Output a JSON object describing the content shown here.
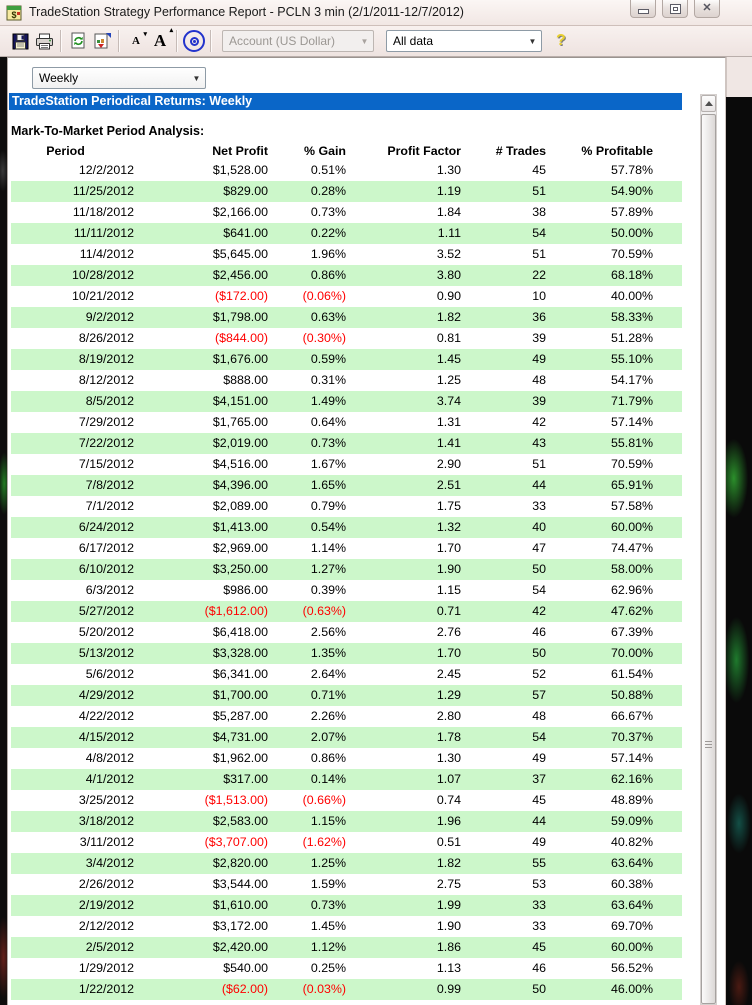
{
  "window": {
    "title": "TradeStation Strategy Performance Report - PCLN 3 min (2/1/2011-12/7/2012)",
    "controls": [
      "minimize",
      "maximize",
      "close"
    ]
  },
  "toolbar": {
    "icons": [
      "save-icon",
      "print-icon",
      "refresh-icon",
      "export-report-icon",
      "decrease-font-icon",
      "increase-font-icon",
      "target-icon",
      "help-icon"
    ],
    "font_small_label": "A",
    "font_large_label": "A",
    "account_dropdown": {
      "value": "Account (US Dollar)",
      "disabled": true
    },
    "data_dropdown": {
      "value": "All data",
      "disabled": false
    },
    "help_label": "?"
  },
  "period_selector": {
    "value": "Weekly"
  },
  "report": {
    "banner": "TradeStation Periodical Returns: Weekly",
    "section_title": "Mark-To-Market Period Analysis:",
    "columns": [
      "Period",
      "Net Profit",
      "% Gain",
      "Profit Factor",
      "# Trades",
      "% Profitable"
    ],
    "rows": [
      {
        "period": "12/2/2012",
        "net_profit": "$1,528.00",
        "gain": "0.51%",
        "profit_factor": "1.30",
        "trades": "45",
        "profitable": "57.78%",
        "negative": false
      },
      {
        "period": "11/25/2012",
        "net_profit": "$829.00",
        "gain": "0.28%",
        "profit_factor": "1.19",
        "trades": "51",
        "profitable": "54.90%",
        "negative": false
      },
      {
        "period": "11/18/2012",
        "net_profit": "$2,166.00",
        "gain": "0.73%",
        "profit_factor": "1.84",
        "trades": "38",
        "profitable": "57.89%",
        "negative": false
      },
      {
        "period": "11/11/2012",
        "net_profit": "$641.00",
        "gain": "0.22%",
        "profit_factor": "1.11",
        "trades": "54",
        "profitable": "50.00%",
        "negative": false
      },
      {
        "period": "11/4/2012",
        "net_profit": "$5,645.00",
        "gain": "1.96%",
        "profit_factor": "3.52",
        "trades": "51",
        "profitable": "70.59%",
        "negative": false
      },
      {
        "period": "10/28/2012",
        "net_profit": "$2,456.00",
        "gain": "0.86%",
        "profit_factor": "3.80",
        "trades": "22",
        "profitable": "68.18%",
        "negative": false
      },
      {
        "period": "10/21/2012",
        "net_profit": "($172.00)",
        "gain": "(0.06%)",
        "profit_factor": "0.90",
        "trades": "10",
        "profitable": "40.00%",
        "negative": true
      },
      {
        "period": "9/2/2012",
        "net_profit": "$1,798.00",
        "gain": "0.63%",
        "profit_factor": "1.82",
        "trades": "36",
        "profitable": "58.33%",
        "negative": false
      },
      {
        "period": "8/26/2012",
        "net_profit": "($844.00)",
        "gain": "(0.30%)",
        "profit_factor": "0.81",
        "trades": "39",
        "profitable": "51.28%",
        "negative": true
      },
      {
        "period": "8/19/2012",
        "net_profit": "$1,676.00",
        "gain": "0.59%",
        "profit_factor": "1.45",
        "trades": "49",
        "profitable": "55.10%",
        "negative": false
      },
      {
        "period": "8/12/2012",
        "net_profit": "$888.00",
        "gain": "0.31%",
        "profit_factor": "1.25",
        "trades": "48",
        "profitable": "54.17%",
        "negative": false
      },
      {
        "period": "8/5/2012",
        "net_profit": "$4,151.00",
        "gain": "1.49%",
        "profit_factor": "3.74",
        "trades": "39",
        "profitable": "71.79%",
        "negative": false
      },
      {
        "period": "7/29/2012",
        "net_profit": "$1,765.00",
        "gain": "0.64%",
        "profit_factor": "1.31",
        "trades": "42",
        "profitable": "57.14%",
        "negative": false
      },
      {
        "period": "7/22/2012",
        "net_profit": "$2,019.00",
        "gain": "0.73%",
        "profit_factor": "1.41",
        "trades": "43",
        "profitable": "55.81%",
        "negative": false
      },
      {
        "period": "7/15/2012",
        "net_profit": "$4,516.00",
        "gain": "1.67%",
        "profit_factor": "2.90",
        "trades": "51",
        "profitable": "70.59%",
        "negative": false
      },
      {
        "period": "7/8/2012",
        "net_profit": "$4,396.00",
        "gain": "1.65%",
        "profit_factor": "2.51",
        "trades": "44",
        "profitable": "65.91%",
        "negative": false
      },
      {
        "period": "7/1/2012",
        "net_profit": "$2,089.00",
        "gain": "0.79%",
        "profit_factor": "1.75",
        "trades": "33",
        "profitable": "57.58%",
        "negative": false
      },
      {
        "period": "6/24/2012",
        "net_profit": "$1,413.00",
        "gain": "0.54%",
        "profit_factor": "1.32",
        "trades": "40",
        "profitable": "60.00%",
        "negative": false
      },
      {
        "period": "6/17/2012",
        "net_profit": "$2,969.00",
        "gain": "1.14%",
        "profit_factor": "1.70",
        "trades": "47",
        "profitable": "74.47%",
        "negative": false
      },
      {
        "period": "6/10/2012",
        "net_profit": "$3,250.00",
        "gain": "1.27%",
        "profit_factor": "1.90",
        "trades": "50",
        "profitable": "58.00%",
        "negative": false
      },
      {
        "period": "6/3/2012",
        "net_profit": "$986.00",
        "gain": "0.39%",
        "profit_factor": "1.15",
        "trades": "54",
        "profitable": "62.96%",
        "negative": false
      },
      {
        "period": "5/27/2012",
        "net_profit": "($1,612.00)",
        "gain": "(0.63%)",
        "profit_factor": "0.71",
        "trades": "42",
        "profitable": "47.62%",
        "negative": true
      },
      {
        "period": "5/20/2012",
        "net_profit": "$6,418.00",
        "gain": "2.56%",
        "profit_factor": "2.76",
        "trades": "46",
        "profitable": "67.39%",
        "negative": false
      },
      {
        "period": "5/13/2012",
        "net_profit": "$3,328.00",
        "gain": "1.35%",
        "profit_factor": "1.70",
        "trades": "50",
        "profitable": "70.00%",
        "negative": false
      },
      {
        "period": "5/6/2012",
        "net_profit": "$6,341.00",
        "gain": "2.64%",
        "profit_factor": "2.45",
        "trades": "52",
        "profitable": "61.54%",
        "negative": false
      },
      {
        "period": "4/29/2012",
        "net_profit": "$1,700.00",
        "gain": "0.71%",
        "profit_factor": "1.29",
        "trades": "57",
        "profitable": "50.88%",
        "negative": false
      },
      {
        "period": "4/22/2012",
        "net_profit": "$5,287.00",
        "gain": "2.26%",
        "profit_factor": "2.80",
        "trades": "48",
        "profitable": "66.67%",
        "negative": false
      },
      {
        "period": "4/15/2012",
        "net_profit": "$4,731.00",
        "gain": "2.07%",
        "profit_factor": "1.78",
        "trades": "54",
        "profitable": "70.37%",
        "negative": false
      },
      {
        "period": "4/8/2012",
        "net_profit": "$1,962.00",
        "gain": "0.86%",
        "profit_factor": "1.30",
        "trades": "49",
        "profitable": "57.14%",
        "negative": false
      },
      {
        "period": "4/1/2012",
        "net_profit": "$317.00",
        "gain": "0.14%",
        "profit_factor": "1.07",
        "trades": "37",
        "profitable": "62.16%",
        "negative": false
      },
      {
        "period": "3/25/2012",
        "net_profit": "($1,513.00)",
        "gain": "(0.66%)",
        "profit_factor": "0.74",
        "trades": "45",
        "profitable": "48.89%",
        "negative": true
      },
      {
        "period": "3/18/2012",
        "net_profit": "$2,583.00",
        "gain": "1.15%",
        "profit_factor": "1.96",
        "trades": "44",
        "profitable": "59.09%",
        "negative": false
      },
      {
        "period": "3/11/2012",
        "net_profit": "($3,707.00)",
        "gain": "(1.62%)",
        "profit_factor": "0.51",
        "trades": "49",
        "profitable": "40.82%",
        "negative": true
      },
      {
        "period": "3/4/2012",
        "net_profit": "$2,820.00",
        "gain": "1.25%",
        "profit_factor": "1.82",
        "trades": "55",
        "profitable": "63.64%",
        "negative": false
      },
      {
        "period": "2/26/2012",
        "net_profit": "$3,544.00",
        "gain": "1.59%",
        "profit_factor": "2.75",
        "trades": "53",
        "profitable": "60.38%",
        "negative": false
      },
      {
        "period": "2/19/2012",
        "net_profit": "$1,610.00",
        "gain": "0.73%",
        "profit_factor": "1.99",
        "trades": "33",
        "profitable": "63.64%",
        "negative": false
      },
      {
        "period": "2/12/2012",
        "net_profit": "$3,172.00",
        "gain": "1.45%",
        "profit_factor": "1.90",
        "trades": "33",
        "profitable": "69.70%",
        "negative": false
      },
      {
        "period": "2/5/2012",
        "net_profit": "$2,420.00",
        "gain": "1.12%",
        "profit_factor": "1.86",
        "trades": "45",
        "profitable": "60.00%",
        "negative": false
      },
      {
        "period": "1/29/2012",
        "net_profit": "$540.00",
        "gain": "0.25%",
        "profit_factor": "1.13",
        "trades": "46",
        "profitable": "56.52%",
        "negative": false
      },
      {
        "period": "1/22/2012",
        "net_profit": "($62.00)",
        "gain": "(0.03%)",
        "profit_factor": "0.99",
        "trades": "50",
        "profitable": "46.00%",
        "negative": true
      }
    ]
  },
  "colors": {
    "banner_blue": "#0a66c8",
    "row_stripe_green": "#ccf7ca",
    "negative_red": "#ff0000",
    "frame_pink": "#f1e8e5"
  }
}
